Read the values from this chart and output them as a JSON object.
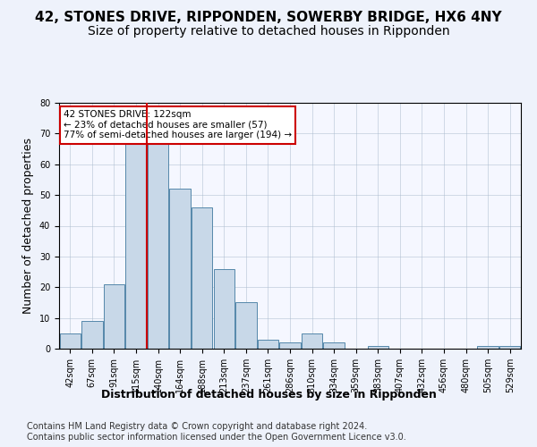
{
  "title": "42, STONES DRIVE, RIPPONDEN, SOWERBY BRIDGE, HX6 4NY",
  "subtitle": "Size of property relative to detached houses in Ripponden",
  "xlabel": "Distribution of detached houses by size in Ripponden",
  "ylabel": "Number of detached properties",
  "bins": [
    "42sqm",
    "67sqm",
    "91sqm",
    "115sqm",
    "140sqm",
    "164sqm",
    "188sqm",
    "213sqm",
    "237sqm",
    "261sqm",
    "286sqm",
    "310sqm",
    "334sqm",
    "359sqm",
    "383sqm",
    "407sqm",
    "432sqm",
    "456sqm",
    "480sqm",
    "505sqm",
    "529sqm"
  ],
  "bar_values": [
    5,
    9,
    21,
    67,
    67,
    52,
    46,
    26,
    15,
    3,
    2,
    5,
    2,
    0,
    1,
    0,
    0,
    0,
    0,
    1,
    1
  ],
  "bar_color": "#c8d8e8",
  "bar_edge_color": "#5588aa",
  "property_label": "42 STONES DRIVE: 122sqm",
  "annotation_line1": "← 23% of detached houses are smaller (57)",
  "annotation_line2": "77% of semi-detached houses are larger (194) →",
  "vline_color": "#cc0000",
  "vline_x": 3.5,
  "ylim": [
    0,
    80
  ],
  "yticks": [
    0,
    10,
    20,
    30,
    40,
    50,
    60,
    70,
    80
  ],
  "footnote1": "Contains HM Land Registry data © Crown copyright and database right 2024.",
  "footnote2": "Contains public sector information licensed under the Open Government Licence v3.0.",
  "title_fontsize": 11,
  "subtitle_fontsize": 10,
  "xlabel_fontsize": 9,
  "ylabel_fontsize": 9,
  "tick_fontsize": 7,
  "footnote_fontsize": 7,
  "background_color": "#eef2fb",
  "plot_bg_color": "#f5f7ff"
}
